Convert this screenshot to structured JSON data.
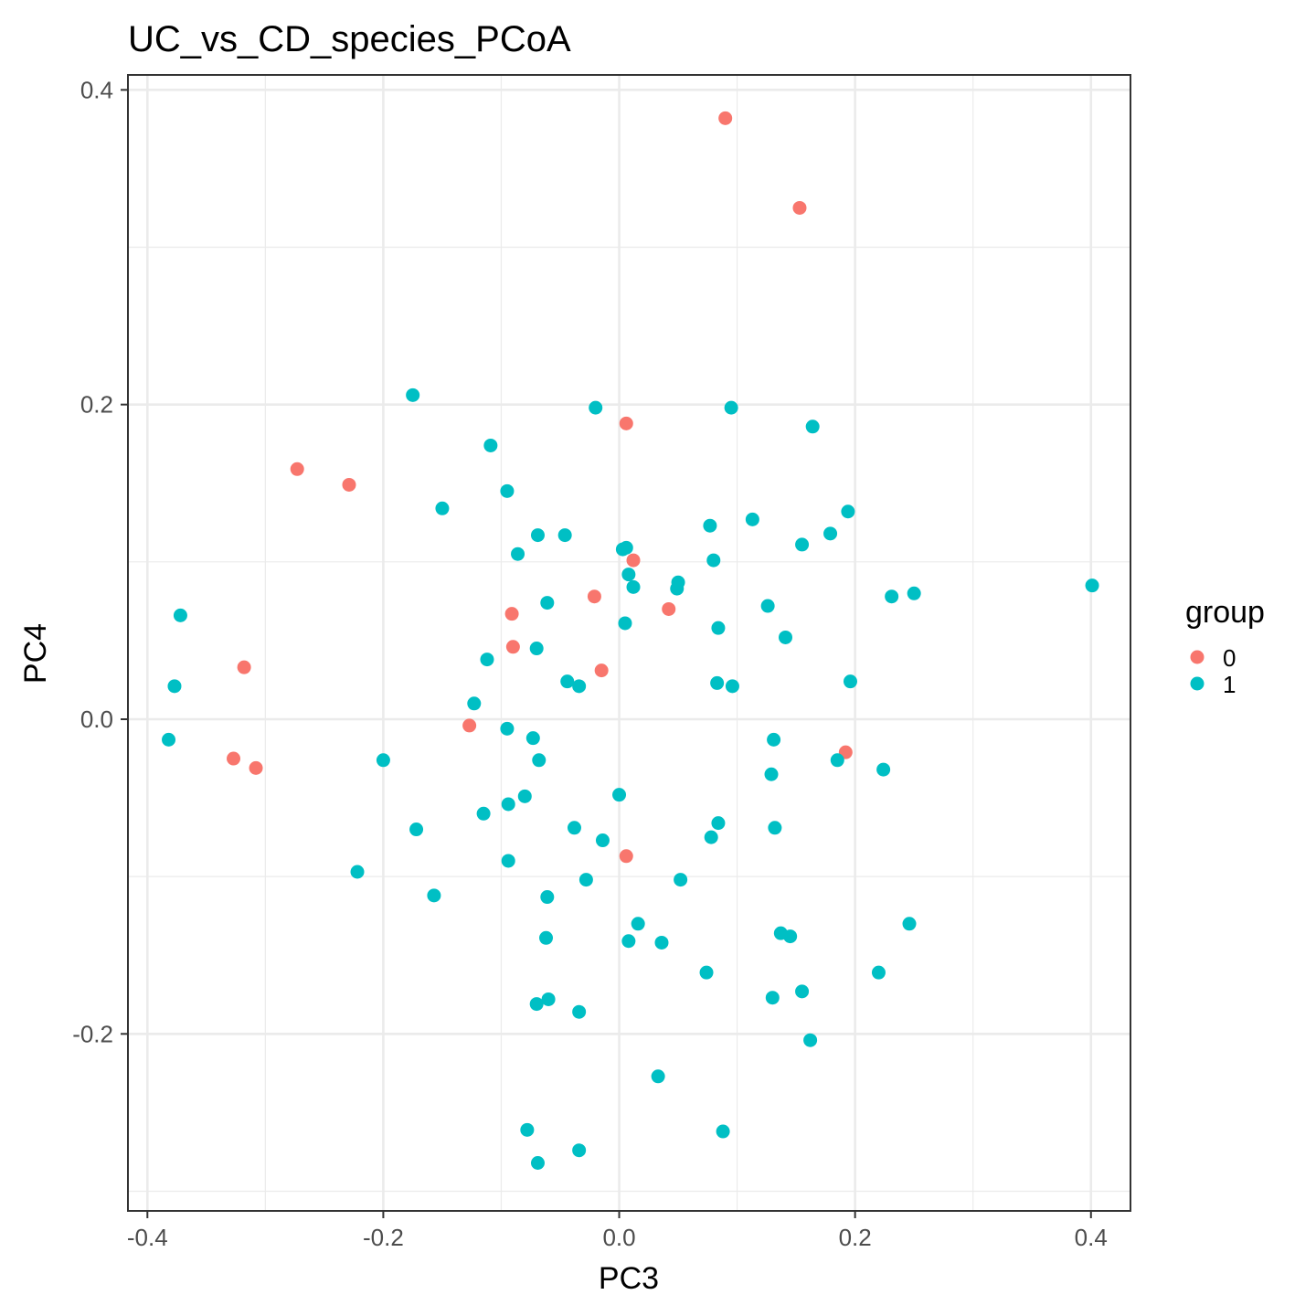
{
  "chart_data": {
    "type": "scatter",
    "title": "UC_vs_CD_species_PCoA",
    "xlabel": "PC3",
    "ylabel": "PC4",
    "xlim": [
      -0.4165,
      0.4335
    ],
    "ylim": [
      -0.3125,
      0.4095
    ],
    "xticks": [
      -0.4,
      -0.2,
      0.0,
      0.2,
      0.4
    ],
    "xtick_labels": [
      "-0.4",
      "-0.2",
      "0.0",
      "0.2",
      "0.4"
    ],
    "yticks": [
      -0.2,
      0.0,
      0.2,
      0.4
    ],
    "ytick_labels": [
      "-0.2",
      "0.0",
      "0.2",
      "0.4"
    ],
    "grid": true,
    "legend": {
      "title": "group",
      "position": "right"
    },
    "series": [
      {
        "name": "0",
        "color": "#F8766D",
        "points": [
          [
            0.09,
            0.382
          ],
          [
            0.153,
            0.325
          ],
          [
            0.006,
            0.188
          ],
          [
            -0.273,
            0.159
          ],
          [
            -0.229,
            0.149
          ],
          [
            0.012,
            0.101
          ],
          [
            -0.021,
            0.078
          ],
          [
            0.042,
            0.07
          ],
          [
            -0.091,
            0.067
          ],
          [
            -0.09,
            0.046
          ],
          [
            -0.318,
            0.033
          ],
          [
            -0.015,
            0.031
          ],
          [
            -0.127,
            -0.004
          ],
          [
            -0.327,
            -0.025
          ],
          [
            -0.308,
            -0.031
          ],
          [
            0.192,
            -0.021
          ],
          [
            0.006,
            -0.087
          ]
        ]
      },
      {
        "name": "1",
        "color": "#00BFC4",
        "points": [
          [
            -0.175,
            0.206
          ],
          [
            -0.02,
            0.198
          ],
          [
            0.095,
            0.198
          ],
          [
            0.164,
            0.186
          ],
          [
            -0.109,
            0.174
          ],
          [
            -0.095,
            0.145
          ],
          [
            -0.15,
            0.134
          ],
          [
            0.194,
            0.132
          ],
          [
            0.113,
            0.127
          ],
          [
            0.077,
            0.123
          ],
          [
            -0.069,
            0.117
          ],
          [
            -0.046,
            0.117
          ],
          [
            0.179,
            0.118
          ],
          [
            0.155,
            0.111
          ],
          [
            0.006,
            0.109
          ],
          [
            0.003,
            0.108
          ],
          [
            -0.086,
            0.105
          ],
          [
            0.08,
            0.101
          ],
          [
            0.008,
            0.092
          ],
          [
            0.05,
            0.087
          ],
          [
            0.049,
            0.083
          ],
          [
            0.012,
            0.084
          ],
          [
            0.401,
            0.085
          ],
          [
            0.25,
            0.08
          ],
          [
            0.231,
            0.078
          ],
          [
            -0.061,
            0.074
          ],
          [
            0.126,
            0.072
          ],
          [
            -0.372,
            0.066
          ],
          [
            0.005,
            0.061
          ],
          [
            0.084,
            0.058
          ],
          [
            0.141,
            0.052
          ],
          [
            -0.07,
            0.045
          ],
          [
            -0.112,
            0.038
          ],
          [
            0.196,
            0.024
          ],
          [
            -0.044,
            0.024
          ],
          [
            0.083,
            0.023
          ],
          [
            -0.034,
            0.021
          ],
          [
            0.096,
            0.021
          ],
          [
            -0.377,
            0.021
          ],
          [
            -0.123,
            0.01
          ],
          [
            -0.095,
            -0.006
          ],
          [
            -0.382,
            -0.013
          ],
          [
            -0.073,
            -0.012
          ],
          [
            0.131,
            -0.013
          ],
          [
            -0.2,
            -0.026
          ],
          [
            -0.068,
            -0.026
          ],
          [
            0.185,
            -0.026
          ],
          [
            0.224,
            -0.032
          ],
          [
            0.129,
            -0.035
          ],
          [
            0.0,
            -0.048
          ],
          [
            -0.08,
            -0.049
          ],
          [
            -0.094,
            -0.054
          ],
          [
            -0.115,
            -0.06
          ],
          [
            0.084,
            -0.066
          ],
          [
            -0.172,
            -0.07
          ],
          [
            -0.038,
            -0.069
          ],
          [
            0.132,
            -0.069
          ],
          [
            0.078,
            -0.075
          ],
          [
            -0.014,
            -0.077
          ],
          [
            -0.094,
            -0.09
          ],
          [
            -0.222,
            -0.097
          ],
          [
            -0.028,
            -0.102
          ],
          [
            0.052,
            -0.102
          ],
          [
            -0.157,
            -0.112
          ],
          [
            -0.061,
            -0.113
          ],
          [
            0.016,
            -0.13
          ],
          [
            0.246,
            -0.13
          ],
          [
            0.137,
            -0.136
          ],
          [
            0.145,
            -0.138
          ],
          [
            -0.062,
            -0.139
          ],
          [
            0.008,
            -0.141
          ],
          [
            0.036,
            -0.142
          ],
          [
            0.074,
            -0.161
          ],
          [
            0.22,
            -0.161
          ],
          [
            0.155,
            -0.173
          ],
          [
            -0.06,
            -0.178
          ],
          [
            0.13,
            -0.177
          ],
          [
            -0.07,
            -0.181
          ],
          [
            -0.034,
            -0.186
          ],
          [
            0.162,
            -0.204
          ],
          [
            0.033,
            -0.227
          ],
          [
            -0.078,
            -0.261
          ],
          [
            0.088,
            -0.262
          ],
          [
            -0.034,
            -0.274
          ],
          [
            -0.069,
            -0.282
          ]
        ]
      }
    ]
  }
}
